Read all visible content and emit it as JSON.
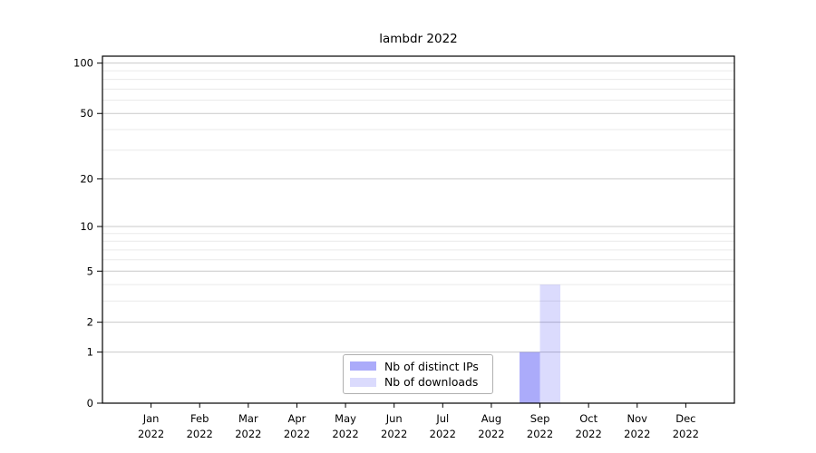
{
  "chart_data": {
    "type": "bar",
    "title": "lambdr 2022",
    "categories": [
      "Jan",
      "Feb",
      "Mar",
      "Apr",
      "May",
      "Jun",
      "Jul",
      "Aug",
      "Sep",
      "Oct",
      "Nov",
      "Dec"
    ],
    "x_year": "2022",
    "series": [
      {
        "name": "Nb of distinct IPs",
        "color": "#0000f0",
        "opacity": 0.33,
        "values": [
          0,
          0,
          0,
          0,
          0,
          0,
          0,
          0,
          1,
          0,
          0,
          0
        ]
      },
      {
        "name": "Nb of downloads",
        "color": "#0000f0",
        "opacity": 0.14,
        "values": [
          0,
          0,
          0,
          0,
          0,
          0,
          0,
          0,
          4,
          0,
          0,
          0
        ]
      }
    ],
    "y_scale": "log1p",
    "ylim": [
      0,
      110
    ],
    "xlim": [
      -1,
      12
    ],
    "y_ticks": [
      0,
      1,
      2,
      5,
      10,
      20,
      50,
      100
    ],
    "y_minor_gridlines": [
      3,
      4,
      6,
      7,
      8,
      9,
      30,
      40,
      60,
      70,
      80,
      90
    ],
    "grid": true,
    "legend_position": "bottom-center-inside",
    "colors": {
      "major_grid": "#c9c9c9",
      "minor_grid": "#eaeaea",
      "axis": "#000000",
      "bar_rendered_dark": "#aaaaf8",
      "bar_rendered_light": "#dcdcfa"
    }
  }
}
